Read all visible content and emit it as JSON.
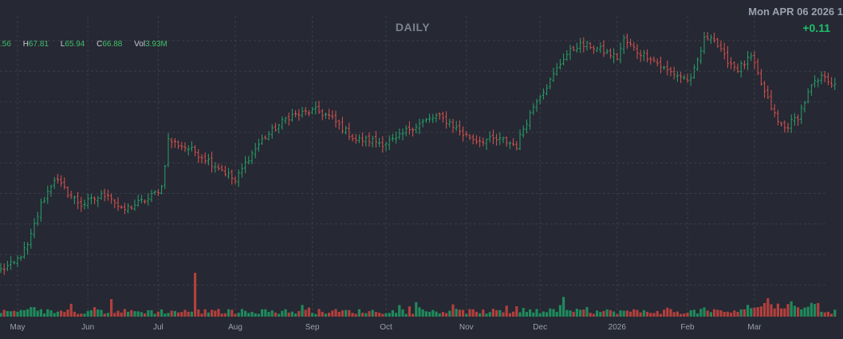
{
  "header": {
    "title": "DAILY",
    "date": "Mon APR 06 2026 1",
    "change": "+0.11"
  },
  "ohlc": {
    "o_partial": ".56",
    "h_label": "H",
    "h_value": "67.81",
    "l_label": "L",
    "l_value": "65.94",
    "c_label": "C",
    "c_value": "66.88",
    "vol_label": "Vol",
    "vol_value": "3.93M"
  },
  "colors": {
    "background": "#262833",
    "up": "#26a269",
    "down": "#d9534f",
    "up_volume": "#1f8a5c",
    "down_volume": "#b2403d",
    "grid": "#3a3d4a"
  },
  "chart_data": {
    "type": "ohlc",
    "title": "DAILY",
    "grid": true,
    "y_price_range": [
      36,
      82
    ],
    "x_ticks": [
      "May",
      "Jun",
      "Jul",
      "Aug",
      "Sep",
      "Oct",
      "Nov",
      "Dec",
      "2026",
      "Feb",
      "Mar"
    ],
    "x_tick_bar_index": [
      5,
      26,
      47,
      70,
      93,
      115,
      139,
      161,
      184,
      205,
      225
    ],
    "anchors": [
      [
        0,
        41
      ],
      [
        4,
        42
      ],
      [
        8,
        45
      ],
      [
        12,
        52
      ],
      [
        16,
        56.5
      ],
      [
        20,
        54
      ],
      [
        24,
        52
      ],
      [
        28,
        53
      ],
      [
        32,
        54
      ],
      [
        36,
        51
      ],
      [
        40,
        52
      ],
      [
        44,
        53
      ],
      [
        48,
        55
      ],
      [
        50,
        63
      ],
      [
        54,
        62
      ],
      [
        58,
        61
      ],
      [
        62,
        59.5
      ],
      [
        66,
        58
      ],
      [
        70,
        56
      ],
      [
        74,
        60
      ],
      [
        78,
        63
      ],
      [
        82,
        65
      ],
      [
        86,
        67
      ],
      [
        90,
        67.5
      ],
      [
        94,
        68
      ],
      [
        98,
        67
      ],
      [
        102,
        65
      ],
      [
        106,
        63
      ],
      [
        110,
        63
      ],
      [
        114,
        62.5
      ],
      [
        118,
        63
      ],
      [
        122,
        65
      ],
      [
        126,
        66
      ],
      [
        130,
        67
      ],
      [
        134,
        66
      ],
      [
        138,
        64
      ],
      [
        142,
        63
      ],
      [
        146,
        63
      ],
      [
        150,
        63
      ],
      [
        154,
        62
      ],
      [
        156,
        65
      ],
      [
        160,
        70
      ],
      [
        164,
        73
      ],
      [
        168,
        77
      ],
      [
        172,
        79
      ],
      [
        176,
        79
      ],
      [
        180,
        78
      ],
      [
        184,
        77
      ],
      [
        186,
        80
      ],
      [
        190,
        78
      ],
      [
        194,
        77
      ],
      [
        198,
        75
      ],
      [
        202,
        74
      ],
      [
        206,
        73
      ],
      [
        210,
        80
      ],
      [
        212,
        81
      ],
      [
        216,
        77
      ],
      [
        220,
        75
      ],
      [
        224,
        77
      ],
      [
        228,
        71
      ],
      [
        232,
        66
      ],
      [
        234,
        65
      ],
      [
        238,
        67
      ],
      [
        242,
        72
      ],
      [
        246,
        74
      ],
      [
        249,
        72
      ]
    ],
    "volume_spikes": [
      [
        33,
        40
      ],
      [
        58,
        100
      ],
      [
        124,
        33
      ],
      [
        168,
        45
      ],
      [
        229,
        42
      ]
    ]
  }
}
